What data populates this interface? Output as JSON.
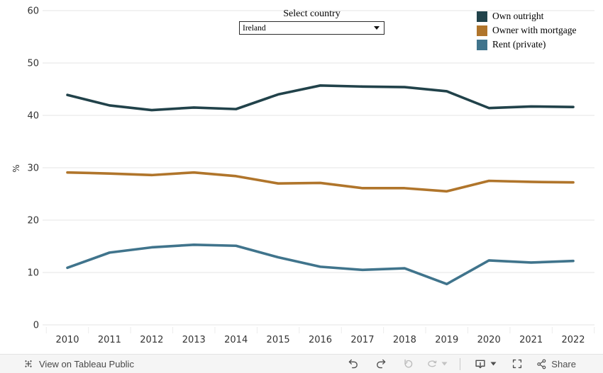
{
  "header": {
    "select_country_label": "Select country",
    "country_value": "Ireland"
  },
  "chart_data": {
    "type": "line",
    "x": [
      2010,
      2011,
      2012,
      2013,
      2014,
      2015,
      2016,
      2017,
      2018,
      2019,
      2020,
      2021,
      2022
    ],
    "series": [
      {
        "name": "Own outright",
        "color": "#21424a",
        "values": [
          43.9,
          41.9,
          41.0,
          41.5,
          41.2,
          44.0,
          45.7,
          45.5,
          45.4,
          44.6,
          41.4,
          41.7,
          41.6
        ]
      },
      {
        "name": "Owner with mortgage",
        "color": "#b0752b",
        "values": [
          29.1,
          28.9,
          28.6,
          29.1,
          28.4,
          27.0,
          27.1,
          26.1,
          26.1,
          25.5,
          27.5,
          27.3,
          27.2
        ]
      },
      {
        "name": "Rent (private)",
        "color": "#40748c",
        "values": [
          10.9,
          13.8,
          14.8,
          15.3,
          15.1,
          12.9,
          11.1,
          10.5,
          10.8,
          7.8,
          12.3,
          11.9,
          12.2
        ]
      }
    ],
    "title": "",
    "xlabel": "",
    "ylabel": "%",
    "ylim": [
      0,
      60
    ],
    "yticks": [
      0,
      10,
      20,
      30,
      40,
      50,
      60
    ],
    "grid": true,
    "legend_position": "top-right"
  },
  "footer": {
    "brand_icon": "tableau-logo-icon",
    "view_label": "View on Tableau Public",
    "toolbar_icons": [
      "undo-icon",
      "redo-icon",
      "reset-icon",
      "refresh-icon",
      "caret-down-icon",
      "download-icon",
      "caret-down-icon",
      "fullscreen-icon",
      "share-icon"
    ],
    "share_label": "Share"
  }
}
